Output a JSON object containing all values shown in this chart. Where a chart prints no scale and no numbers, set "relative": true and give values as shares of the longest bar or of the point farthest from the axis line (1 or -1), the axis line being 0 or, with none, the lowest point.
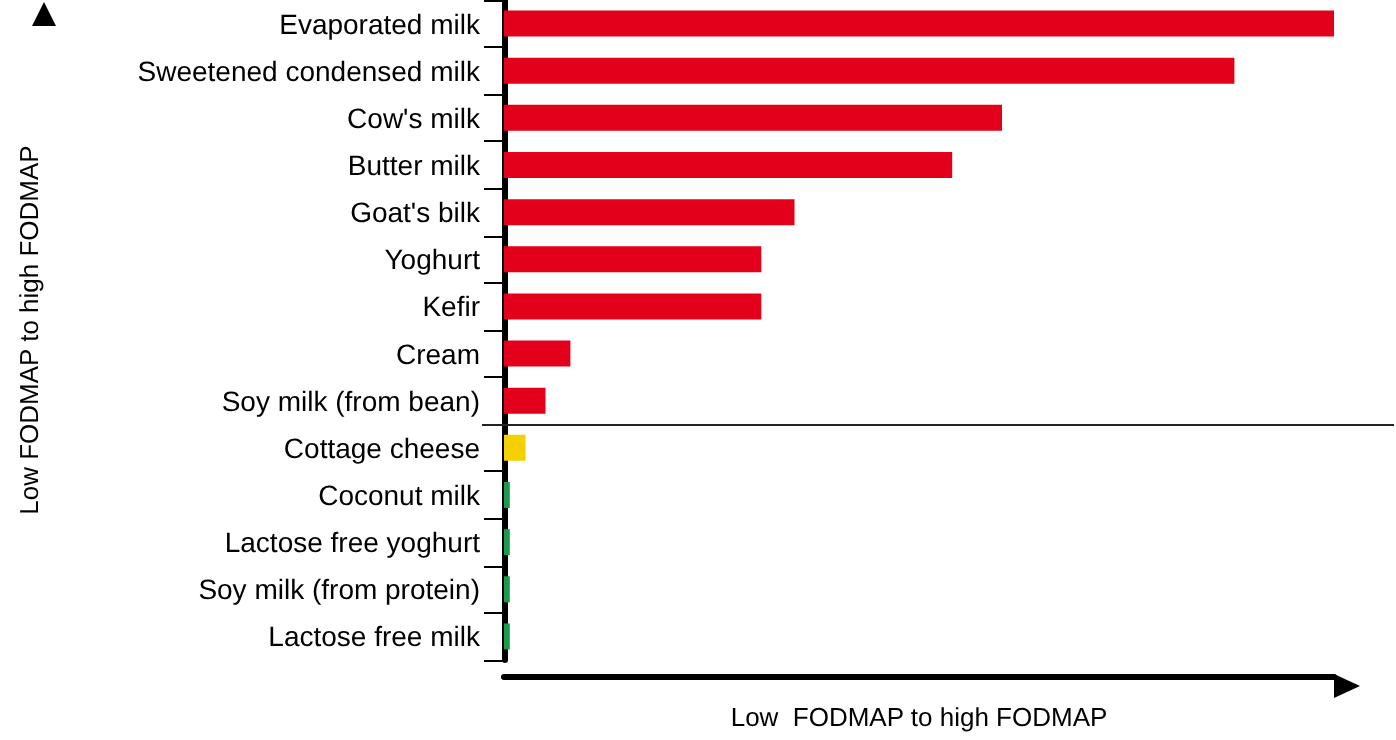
{
  "chart_data": {
    "type": "bar",
    "orientation": "horizontal",
    "relative": true,
    "categories": [
      "Evaporated milk",
      "Sweetened condensed milk",
      "Cow's milk",
      "Butter milk",
      "Goat's bilk",
      "Yoghurt",
      "Kefir",
      "Cream",
      "Soy milk (from bean)",
      "Cottage cheese",
      "Coconut milk",
      "Lactose free yoghurt",
      "Soy milk (from protein)",
      "Lactose free milk"
    ],
    "values": [
      1,
      0.88,
      0.6,
      0.54,
      0.35,
      0.31,
      0.31,
      0.08,
      0.05,
      0.026,
      0.007,
      0.007,
      0.007,
      0.007
    ],
    "colors": [
      "#e2001a",
      "#e2001a",
      "#e2001a",
      "#e2001a",
      "#e2001a",
      "#e2001a",
      "#e2001a",
      "#e2001a",
      "#e2001a",
      "#f5d000",
      "#1a9a4a",
      "#1a9a4a",
      "#1a9a4a",
      "#1a9a4a"
    ],
    "xlabel": "Low  FODMAP to high FODMAP",
    "ylabel": "Low FODMAP to high FODMAP",
    "ref_lines": [
      {
        "axis": "y",
        "value": "Soy milk (from bean)",
        "label": null
      }
    ]
  }
}
